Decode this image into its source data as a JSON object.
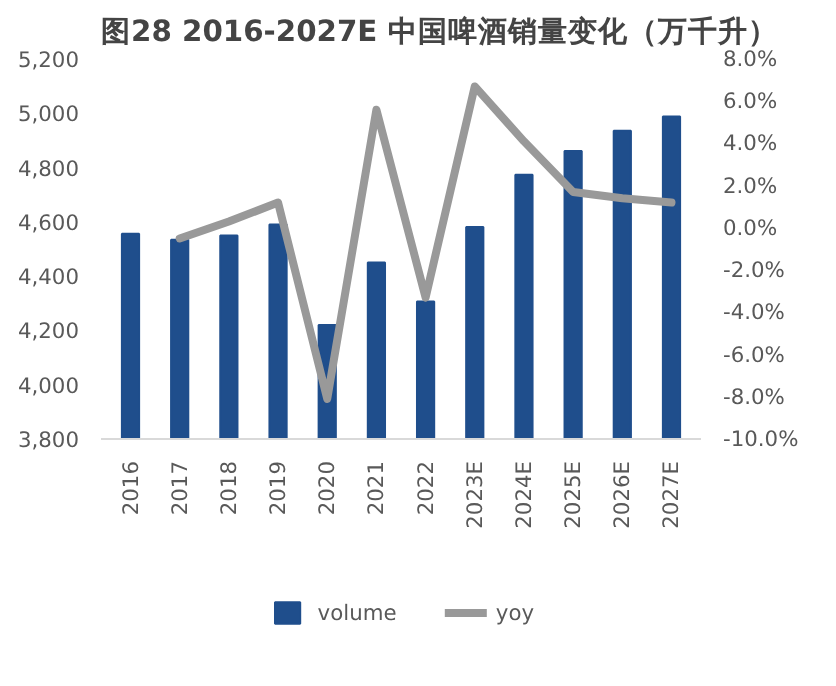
{
  "chart_data": {
    "type": "bar",
    "title": "图28 2016-2027E 中国啤酒销量变化（万千升）",
    "categories": [
      "2016",
      "2017",
      "2018",
      "2019",
      "2020",
      "2021",
      "2022",
      "2023E",
      "2024E",
      "2025E",
      "2026E",
      "2027E"
    ],
    "series": [
      {
        "name": "volume",
        "color": "#1f4e8c",
        "values": [
          4556,
          4534,
          4550,
          4590,
          4220,
          4450,
          4307,
          4581,
          4774,
          4861,
          4936,
          4988
        ]
      },
      {
        "name": "yoy",
        "type": "line",
        "axis": "y2",
        "color": "#999999",
        "values": [
          null,
          -0.5,
          0.3,
          1.2,
          -8.1,
          5.6,
          -3.3,
          6.7,
          4.1,
          1.7,
          1.4,
          1.2
        ]
      }
    ],
    "ylim": [
      3800,
      5200
    ],
    "yticks": [
      {
        "value": 3800,
        "label": "3,800"
      },
      {
        "value": 4000,
        "label": "4,000"
      },
      {
        "value": 4200,
        "label": "4,200"
      },
      {
        "value": 4400,
        "label": "4,400"
      },
      {
        "value": 4600,
        "label": "4,600"
      },
      {
        "value": 4800,
        "label": "4,800"
      },
      {
        "value": 5000,
        "label": "5,000"
      },
      {
        "value": 5200,
        "label": "5,200"
      }
    ],
    "y2lim": [
      -10,
      8
    ],
    "y2ticks": [
      {
        "value": -10,
        "label": "-10.0%"
      },
      {
        "value": -8,
        "label": "-8.0%"
      },
      {
        "value": -6,
        "label": "-6.0%"
      },
      {
        "value": -4,
        "label": "-4.0%"
      },
      {
        "value": -2,
        "label": "-2.0%"
      },
      {
        "value": 0,
        "label": "0.0%"
      },
      {
        "value": 2,
        "label": "2.0%"
      },
      {
        "value": 4,
        "label": "4.0%"
      },
      {
        "value": 6,
        "label": "6.0%"
      },
      {
        "value": 8,
        "label": "8.0%"
      }
    ],
    "legend": "bottom",
    "grid": false,
    "line_style": "solid",
    "marker": "none"
  }
}
